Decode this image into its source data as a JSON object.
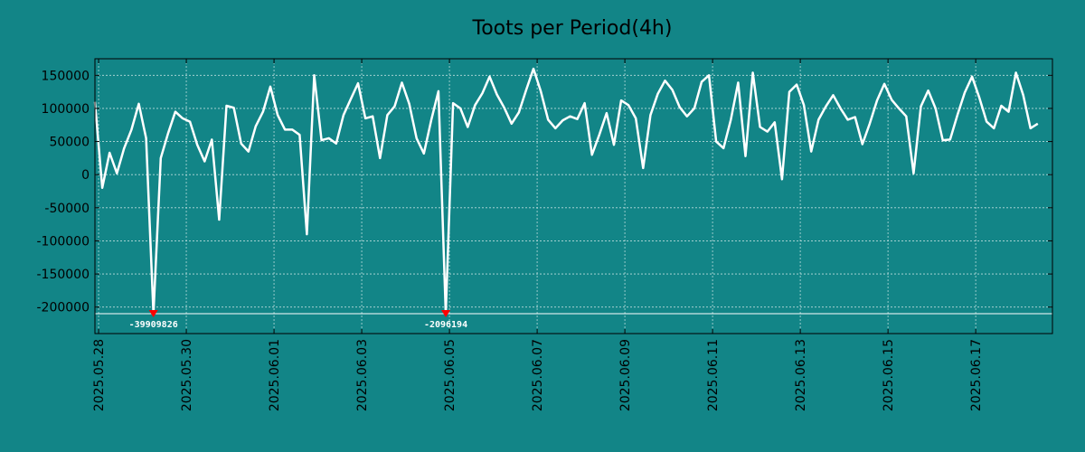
{
  "chart_data": {
    "type": "line",
    "title": "Toots per Period(4h)",
    "xlabel": "",
    "ylabel": "",
    "ylim": [
      -240000,
      175000
    ],
    "grid": true,
    "colors": {
      "background": "#128587",
      "line": "#ffffff",
      "marker": "#ff0000",
      "grid": "#b9dcdc",
      "floor": "#ffffff"
    },
    "y_ticks": [
      {
        "value": 150000,
        "label": "150000"
      },
      {
        "value": 100000,
        "label": "100000"
      },
      {
        "value": 50000,
        "label": "50000"
      },
      {
        "value": 0,
        "label": "0"
      },
      {
        "value": -50000,
        "label": "-50000"
      },
      {
        "value": -100000,
        "label": "-100000"
      },
      {
        "value": -150000,
        "label": "-150000"
      },
      {
        "value": -200000,
        "label": "-200000"
      }
    ],
    "x_range": [
      0,
      131
    ],
    "x_ticks": [
      {
        "value": 0.5,
        "label": "2025.05.28"
      },
      {
        "value": 12.5,
        "label": "2025.05.30"
      },
      {
        "value": 24.5,
        "label": "2025.06.01"
      },
      {
        "value": 36.5,
        "label": "2025.06.03"
      },
      {
        "value": 48.5,
        "label": "2025.06.05"
      },
      {
        "value": 60.5,
        "label": "2025.06.07"
      },
      {
        "value": 72.5,
        "label": "2025.06.09"
      },
      {
        "value": 84.5,
        "label": "2025.06.11"
      },
      {
        "value": 96.5,
        "label": "2025.06.13"
      },
      {
        "value": 108.5,
        "label": "2025.06.15"
      },
      {
        "value": 120.5,
        "label": "2025.06.17"
      }
    ],
    "floor_line": -210000,
    "series": [
      {
        "name": "Toots",
        "values": [
          110000,
          -20000,
          33000,
          2000,
          40000,
          68000,
          107000,
          55000,
          -210000,
          25000,
          62000,
          95000,
          85000,
          80000,
          45000,
          20000,
          53000,
          -68000,
          104000,
          101000,
          47000,
          35000,
          73000,
          95000,
          133000,
          90000,
          68000,
          68000,
          60000,
          -90000,
          150000,
          52000,
          55000,
          47000,
          90000,
          114000,
          138000,
          85000,
          88000,
          25000,
          90000,
          103000,
          139000,
          107000,
          55000,
          32000,
          82000,
          126000,
          -210000,
          108000,
          100000,
          72000,
          105000,
          123000,
          148000,
          121000,
          101000,
          77000,
          94000,
          128000,
          160000,
          126000,
          83000,
          70000,
          82000,
          88000,
          84000,
          108000,
          30000,
          60000,
          93000,
          45000,
          112000,
          105000,
          85000,
          10000,
          90000,
          122000,
          142000,
          128000,
          102000,
          88000,
          100000,
          140000,
          150000,
          50000,
          40000,
          83000,
          139000,
          28000,
          154000,
          72000,
          65000,
          79000,
          -7000,
          125000,
          136000,
          105000,
          35000,
          83000,
          103000,
          120000,
          100000,
          83000,
          87000,
          46000,
          77000,
          112000,
          137000,
          113000,
          100000,
          88000,
          2000,
          103000,
          127000,
          100000,
          52000,
          53000,
          90000,
          124000,
          148000,
          116000,
          80000,
          70000,
          104000,
          95000,
          154000,
          120000,
          70000,
          77000
        ]
      }
    ],
    "annotations": [
      {
        "x": 8,
        "y": -210000,
        "label": "-39909826"
      },
      {
        "x": 48,
        "y": -210000,
        "label": "-2096194"
      }
    ]
  }
}
